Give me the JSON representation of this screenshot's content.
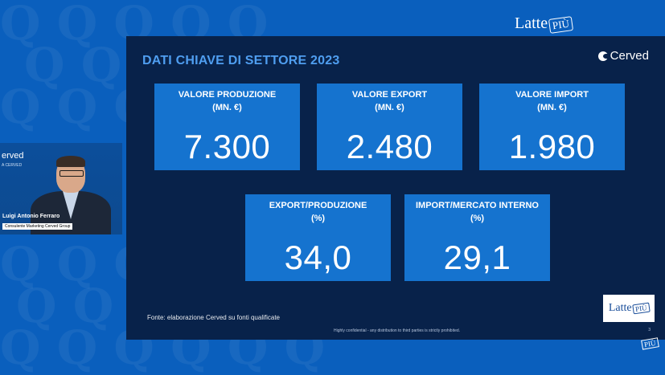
{
  "top_logo": {
    "text": "Latte",
    "badge": "PIÙ"
  },
  "slide": {
    "title": "DATI CHIAVE DI SETTORE 2023",
    "brand": "Cerved",
    "kpis": [
      {
        "label": "VALORE PRODUZIONE",
        "unit": "(MN. €)",
        "value": "7.300"
      },
      {
        "label": "VALORE EXPORT",
        "unit": "(MN. €)",
        "value": "2.480"
      },
      {
        "label": "VALORE IMPORT",
        "unit": "(MN. €)",
        "value": "1.980"
      },
      {
        "label": "EXPORT/PRODUZIONE",
        "unit": "(%)",
        "value": "34,0"
      },
      {
        "label": "IMPORT/MERCATO INTERNO",
        "unit": "(%)",
        "value": "29,1"
      }
    ],
    "footnote": "Fonte: elaborazione Cerved su fonti qualificate",
    "confidential": "Highly confidential - any distribution to third parties is strictly prohibited.",
    "page_number": "3",
    "badge_logo": {
      "text": "Latte",
      "badge": "PIÙ"
    }
  },
  "webcam": {
    "brand": "erved",
    "brand_sub": "A CERVED",
    "speaker_name": "Luigi Antonio Ferraro",
    "speaker_role": "Consulente Marketing Cerved Group"
  },
  "corner_mark": "PIÙ"
}
